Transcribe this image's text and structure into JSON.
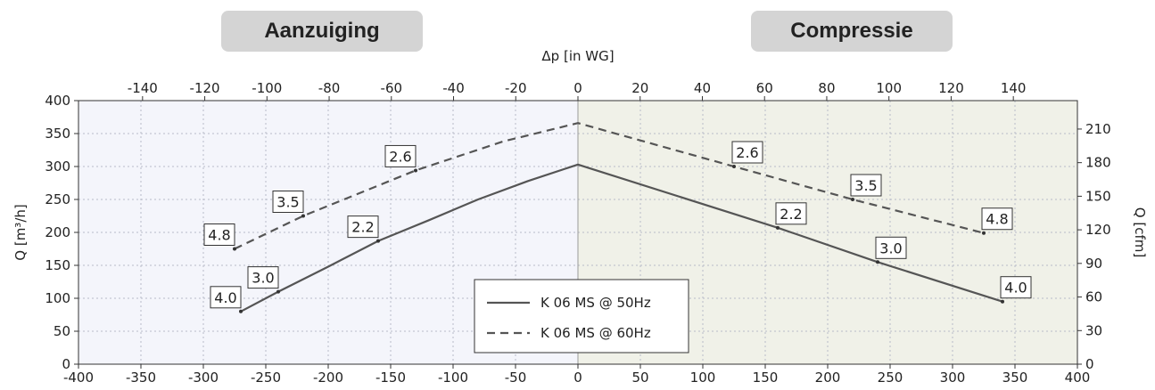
{
  "headers": {
    "left": "Aanzuiging",
    "right": "Compressie"
  },
  "chart_data": {
    "type": "line",
    "xlabel": "",
    "x_range": [
      -400,
      400
    ],
    "x_ticks": [
      -400,
      -350,
      -300,
      -250,
      -200,
      -150,
      -100,
      -50,
      0,
      50,
      100,
      150,
      200,
      250,
      300,
      350,
      400
    ],
    "ylabel": "Q [m³/h]",
    "ylim": [
      0,
      400
    ],
    "y_ticks": [
      0,
      50,
      100,
      150,
      200,
      250,
      300,
      350,
      400
    ],
    "top_axis": {
      "label": "Δp [in WG]",
      "range": [
        -160.6,
        160.6
      ],
      "ticks": [
        -140,
        -120,
        -100,
        -80,
        -60,
        -40,
        -20,
        0,
        20,
        40,
        60,
        80,
        100,
        120,
        140
      ]
    },
    "right_axis": {
      "label": "Q [cfm]",
      "range": [
        0,
        235.4
      ],
      "ticks": [
        0,
        30,
        60,
        90,
        120,
        150,
        180,
        210
      ]
    },
    "grid": true,
    "legend_position": "bottom-center",
    "shading": {
      "left_color": "#f4f5fb",
      "right_color": "#f0f1e8"
    },
    "series": [
      {
        "name": "K 06 MS @ 50Hz",
        "style": "solid",
        "color": "#555555",
        "points": [
          [
            -270,
            80
          ],
          [
            -240,
            110
          ],
          [
            -200,
            148
          ],
          [
            -160,
            187
          ],
          [
            -120,
            218
          ],
          [
            -80,
            250
          ],
          [
            -40,
            278
          ],
          [
            0,
            303
          ],
          [
            160,
            207
          ],
          [
            240,
            155
          ],
          [
            340,
            95
          ]
        ],
        "labels": [
          {
            "text": "4.0",
            "x": -270,
            "y": 80
          },
          {
            "text": "3.0",
            "x": -240,
            "y": 110
          },
          {
            "text": "2.2",
            "x": -160,
            "y": 187
          },
          {
            "text": "2.2",
            "x": 160,
            "y": 207
          },
          {
            "text": "3.0",
            "x": 240,
            "y": 155
          },
          {
            "text": "4.0",
            "x": 340,
            "y": 95
          }
        ]
      },
      {
        "name": "K 06 MS @ 60Hz",
        "style": "dashed",
        "color": "#555555",
        "points": [
          [
            -275,
            175
          ],
          [
            -220,
            225
          ],
          [
            -130,
            294
          ],
          [
            -60,
            338
          ],
          [
            0,
            366
          ],
          [
            125,
            300
          ],
          [
            220,
            250
          ],
          [
            325,
            199
          ]
        ],
        "labels": [
          {
            "text": "4.8",
            "x": -275,
            "y": 175
          },
          {
            "text": "3.5",
            "x": -220,
            "y": 225
          },
          {
            "text": "2.6",
            "x": -130,
            "y": 294
          },
          {
            "text": "2.6",
            "x": 125,
            "y": 300
          },
          {
            "text": "3.5",
            "x": 220,
            "y": 250
          },
          {
            "text": "4.8",
            "x": 325,
            "y": 199
          }
        ]
      }
    ]
  }
}
